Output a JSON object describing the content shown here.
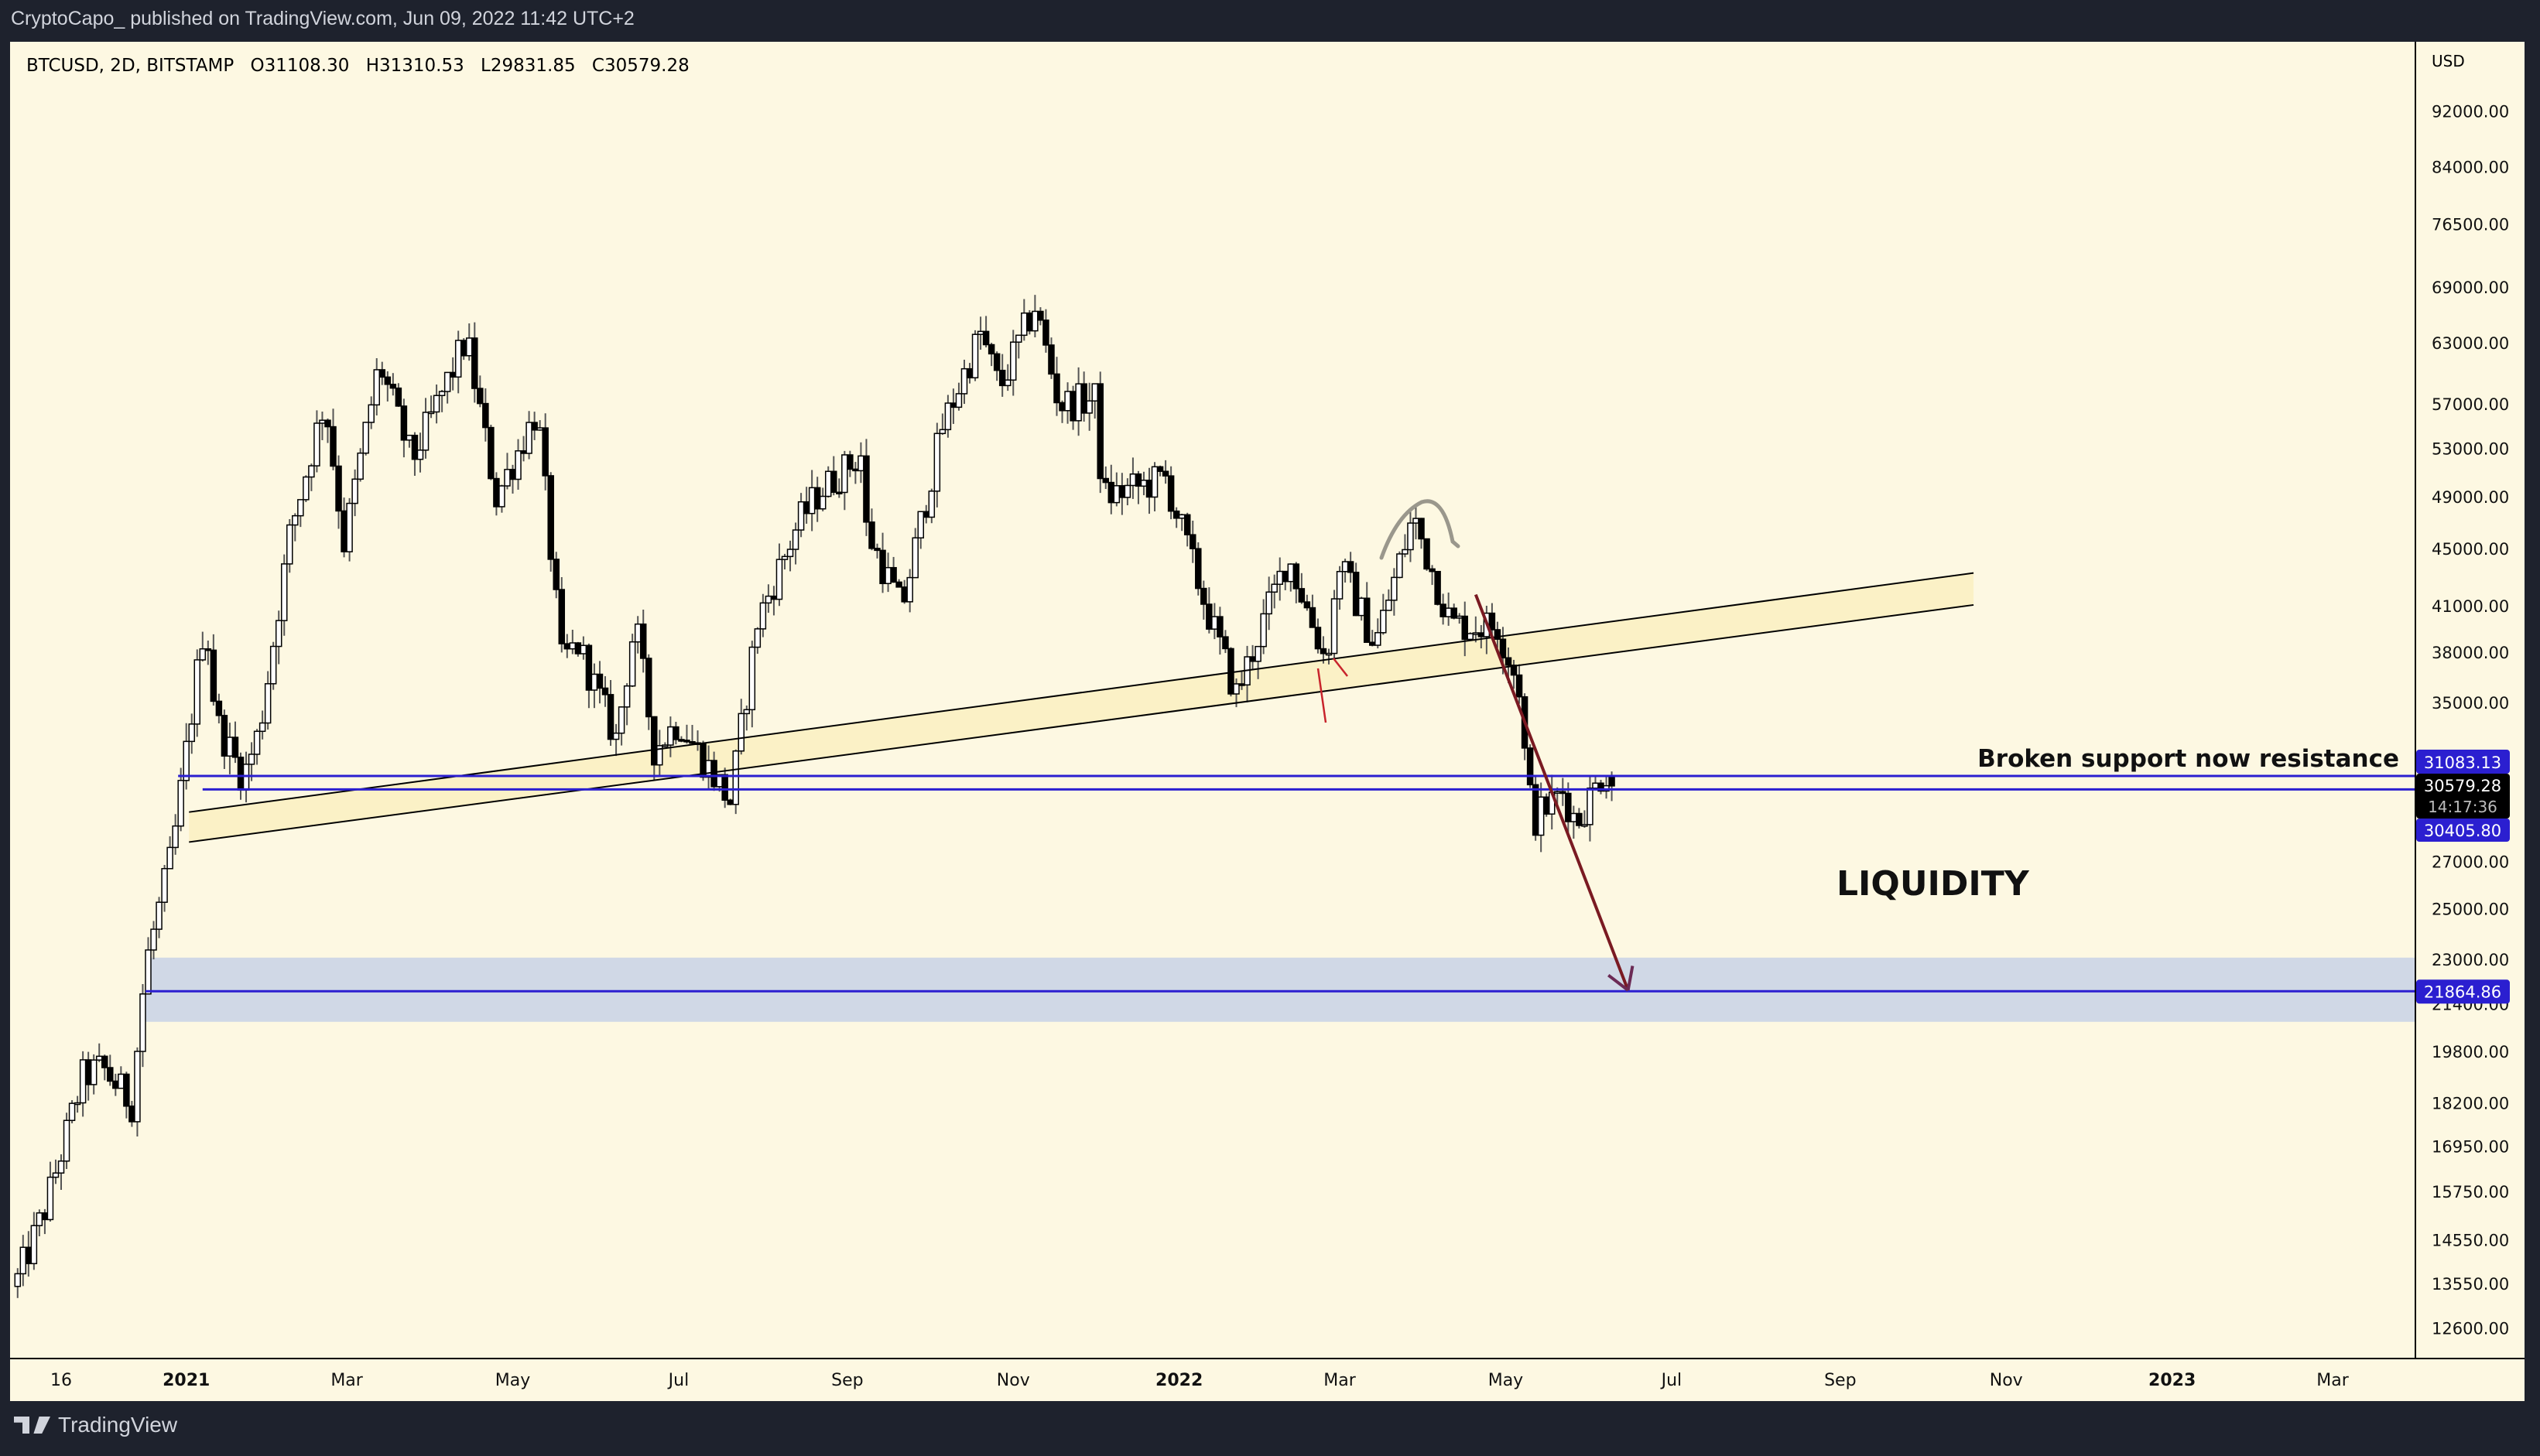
{
  "header": {
    "publisher_line": "CryptoCapo_ published on TradingView.com, Jun 09, 2022 11:42 UTC+2",
    "symbol_line": "BTCUSD, 2D, BITSTAMP",
    "open": "O31108.30",
    "high": "H31310.53",
    "low": "L29831.85",
    "close": "C30579.28"
  },
  "footer": {
    "brand": "TradingView"
  },
  "colors": {
    "background": "#1e222d",
    "pane": "#fdf8e2",
    "level_line": "#2b1fd0",
    "liquidity_zone": "#d0d8e6",
    "channel_fill": "#fbf1c6",
    "arrow": "#7a1a22",
    "arc": "#9a978c"
  },
  "annotations": {
    "resistance_text": "Broken support now resistance",
    "liquidity_text": "LIQUIDITY"
  },
  "chart_data": {
    "type": "candlestick",
    "symbol": "BTCUSD",
    "interval": "2D",
    "exchange": "BITSTAMP",
    "y_scale": "log",
    "currency": "USD",
    "ylim": [
      12000,
      97000
    ],
    "x_range": [
      "2020-10-30",
      "2023-04-10"
    ],
    "grid": false,
    "price_ticks": [
      "92000.00",
      "84000.00",
      "76500.00",
      "69000.00",
      "63000.00",
      "57000.00",
      "53000.00",
      "49000.00",
      "45000.00",
      "41000.00",
      "38000.00",
      "35000.00",
      "27000.00",
      "25000.00",
      "23000.00",
      "21400.00",
      "19800.00",
      "18200.00",
      "16950.00",
      "15750.00",
      "14550.00",
      "13550.00",
      "12600.00"
    ],
    "time_ticks": [
      {
        "label": "16",
        "date": "2020-11-16",
        "bold": false
      },
      {
        "label": "2021",
        "date": "2021-01-01",
        "bold": true
      },
      {
        "label": "Mar",
        "date": "2021-03-01",
        "bold": false
      },
      {
        "label": "May",
        "date": "2021-05-01",
        "bold": false
      },
      {
        "label": "Jul",
        "date": "2021-07-01",
        "bold": false
      },
      {
        "label": "Sep",
        "date": "2021-09-01",
        "bold": false
      },
      {
        "label": "Nov",
        "date": "2021-11-01",
        "bold": false
      },
      {
        "label": "2022",
        "date": "2022-01-01",
        "bold": true
      },
      {
        "label": "Mar",
        "date": "2022-03-01",
        "bold": false
      },
      {
        "label": "May",
        "date": "2022-05-01",
        "bold": false
      },
      {
        "label": "Jul",
        "date": "2022-07-01",
        "bold": false
      },
      {
        "label": "Sep",
        "date": "2022-09-01",
        "bold": false
      },
      {
        "label": "Nov",
        "date": "2022-11-01",
        "bold": false
      },
      {
        "label": "2023",
        "date": "2023-01-01",
        "bold": true
      },
      {
        "label": "Mar",
        "date": "2023-03-01",
        "bold": false
      }
    ],
    "approx_price_path": [
      [
        "2020-10-30",
        13500
      ],
      [
        "2020-11-10",
        15300
      ],
      [
        "2020-11-24",
        19000
      ],
      [
        "2020-12-01",
        19300
      ],
      [
        "2020-12-12",
        18200
      ],
      [
        "2020-12-17",
        22800
      ],
      [
        "2020-12-27",
        27500
      ],
      [
        "2021-01-08",
        40500
      ],
      [
        "2021-01-12",
        34000
      ],
      [
        "2021-01-22",
        31000
      ],
      [
        "2021-01-28",
        33500
      ],
      [
        "2021-02-08",
        46000
      ],
      [
        "2021-02-21",
        57500
      ],
      [
        "2021-02-28",
        45500
      ],
      [
        "2021-03-13",
        61000
      ],
      [
        "2021-03-25",
        52000
      ],
      [
        "2021-04-14",
        63500
      ],
      [
        "2021-04-25",
        49000
      ],
      [
        "2021-05-10",
        56500
      ],
      [
        "2021-05-19",
        37500
      ],
      [
        "2021-05-25",
        38500
      ],
      [
        "2021-06-08",
        33000
      ],
      [
        "2021-06-15",
        40000
      ],
      [
        "2021-06-22",
        32500
      ],
      [
        "2021-07-01",
        34000
      ],
      [
        "2021-07-20",
        29800
      ],
      [
        "2021-07-30",
        40000
      ],
      [
        "2021-08-14",
        47000
      ],
      [
        "2021-08-22",
        49500
      ],
      [
        "2021-09-06",
        52500
      ],
      [
        "2021-09-08",
        46500
      ],
      [
        "2021-09-21",
        40800
      ],
      [
        "2021-10-06",
        55000
      ],
      [
        "2021-10-20",
        64000
      ],
      [
        "2021-10-27",
        58500
      ],
      [
        "2021-11-09",
        67000
      ],
      [
        "2021-11-18",
        57000
      ],
      [
        "2021-12-01",
        57500
      ],
      [
        "2021-12-04",
        49000
      ],
      [
        "2021-12-27",
        50500
      ],
      [
        "2022-01-10",
        41500
      ],
      [
        "2022-01-22",
        35500
      ],
      [
        "2022-02-10",
        44500
      ],
      [
        "2022-02-24",
        37500
      ],
      [
        "2022-03-01",
        44000
      ],
      [
        "2022-03-14",
        38500
      ],
      [
        "2022-03-28",
        47500
      ],
      [
        "2022-04-11",
        39800
      ],
      [
        "2022-04-28",
        39700
      ],
      [
        "2022-05-06",
        36000
      ],
      [
        "2022-05-09",
        30500
      ],
      [
        "2022-05-12",
        29000
      ],
      [
        "2022-05-22",
        30300
      ],
      [
        "2022-05-27",
        28800
      ],
      [
        "2022-06-01",
        30000
      ],
      [
        "2022-06-06",
        31300
      ]
    ],
    "last_candle": {
      "date": "2022-06-08",
      "open": 31108.3,
      "high": 31310.53,
      "low": 29831.85,
      "close": 30579.28
    },
    "levels": [
      {
        "label": "31083.13",
        "price": 31083.13,
        "from": "2020-12-29"
      },
      {
        "label": "30405.80",
        "price": 30405.8,
        "from": "2021-01-07"
      },
      {
        "label": "21864.86",
        "price": 21864.86,
        "from": "2020-12-17"
      }
    ],
    "last_price_label": "30579.28",
    "countdown_label": "14:17:36",
    "liquidity_zone": {
      "top": 23100,
      "bottom": 20800,
      "from": "2020-12-17"
    },
    "channel": {
      "upper": [
        [
          "2021-01-02",
          29300
        ],
        [
          "2022-10-20",
          43300
        ]
      ],
      "lower": [
        [
          "2021-01-02",
          27900
        ],
        [
          "2022-10-20",
          41100
        ]
      ]
    },
    "arrow": {
      "from": [
        "2022-04-20",
        41800
      ],
      "to": [
        "2022-06-15",
        21900
      ]
    }
  }
}
